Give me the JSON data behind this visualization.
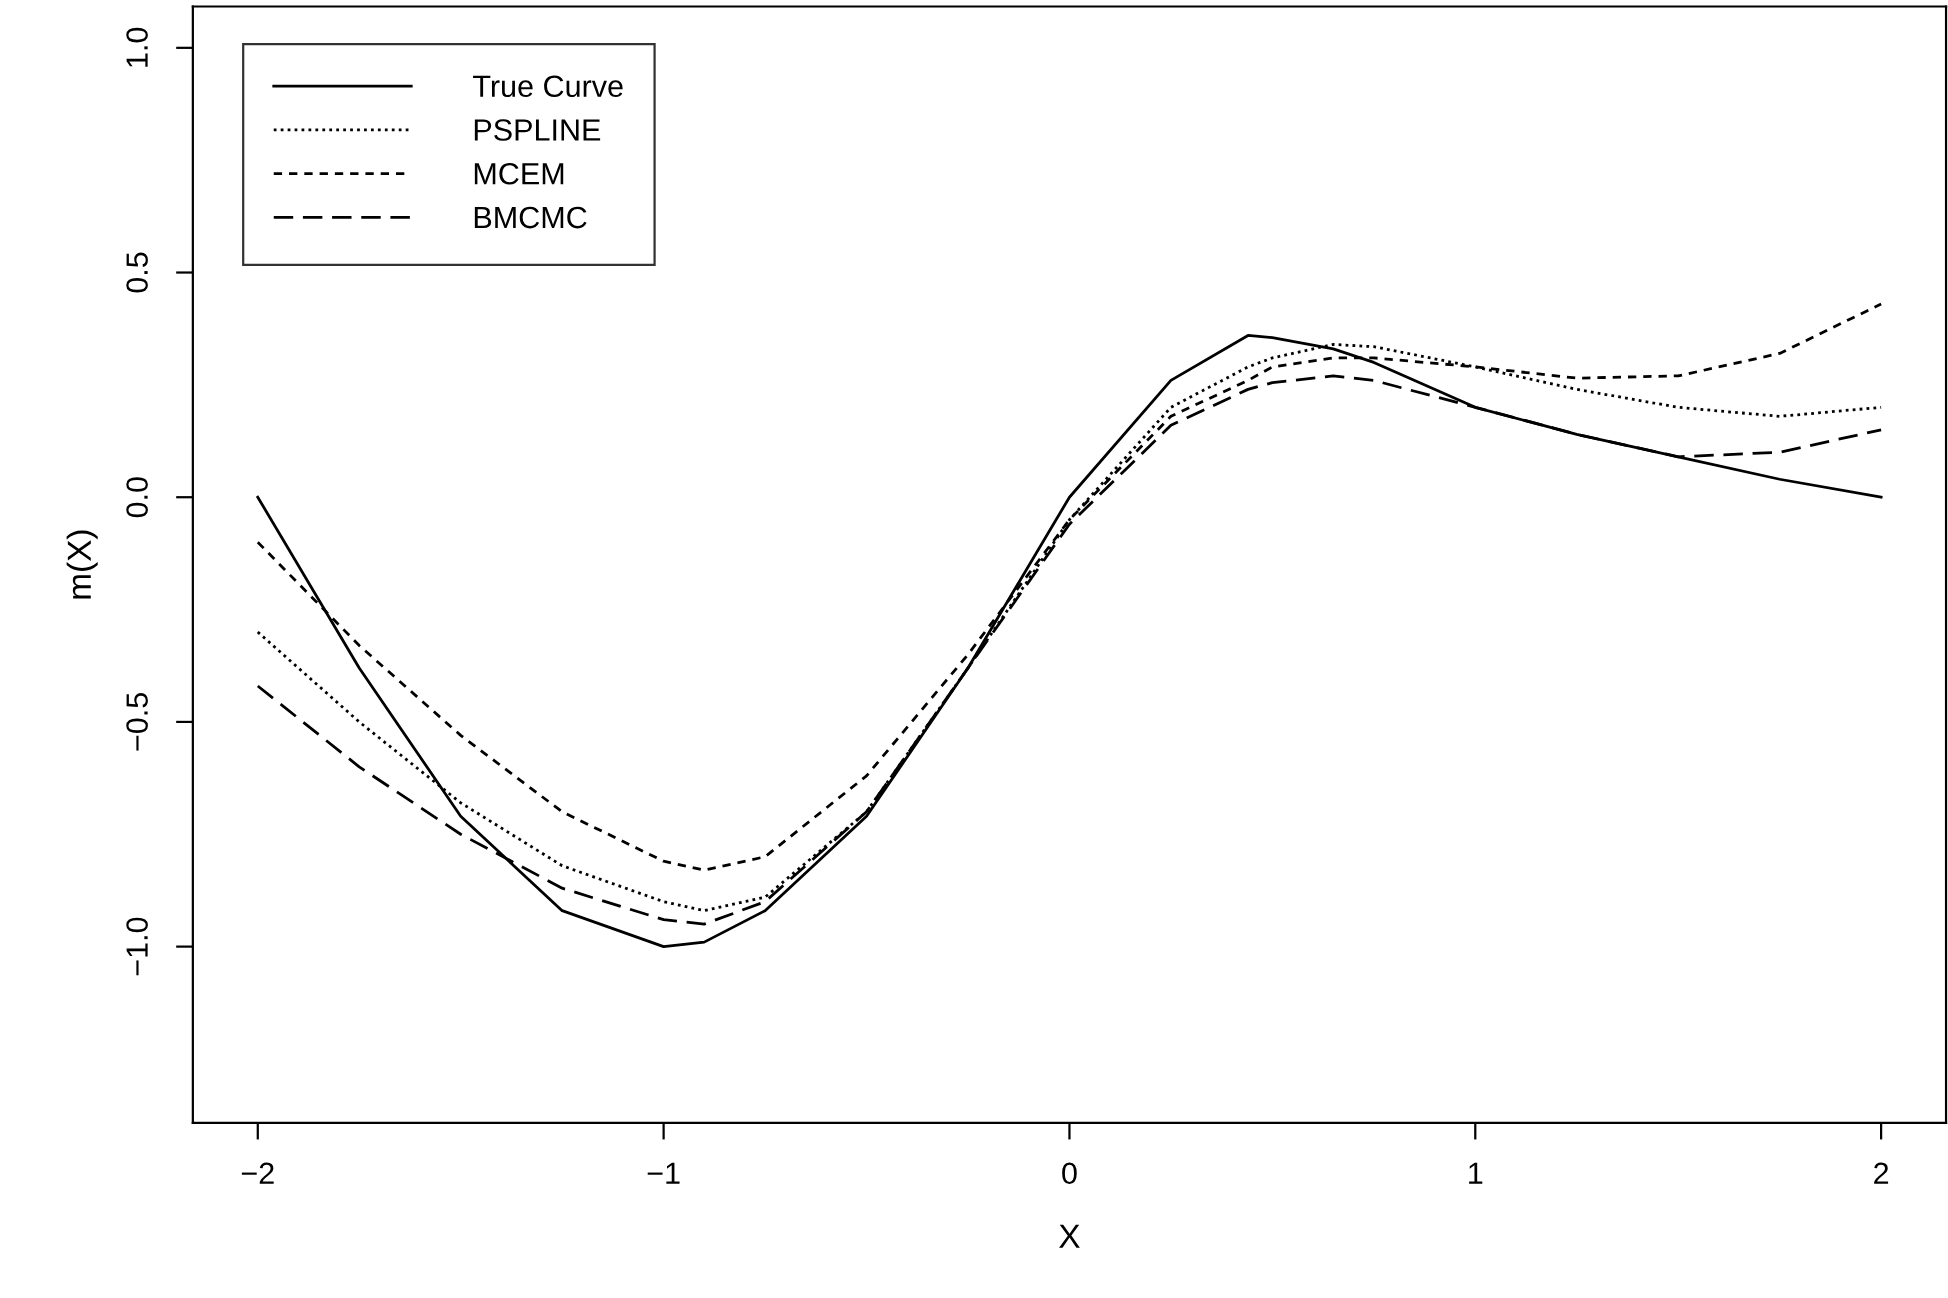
{
  "chart_data": {
    "type": "line",
    "xlabel": "X",
    "ylabel": "m(X)",
    "x": [
      -2,
      -1.75,
      -1.5,
      -1.25,
      -1,
      -0.9,
      -0.75,
      -0.5,
      -0.25,
      0,
      0.25,
      0.44,
      0.5,
      0.65,
      0.75,
      1,
      1.25,
      1.5,
      1.75,
      2
    ],
    "series": [
      {
        "name": "True Curve",
        "color": "#000000",
        "line_style": "solid",
        "values": [
          0,
          -0.38,
          -0.71,
          -0.92,
          -1.0,
          -0.99,
          -0.92,
          -0.71,
          -0.38,
          0,
          0.26,
          0.36,
          0.355,
          0.33,
          0.3,
          0.2,
          0.14,
          0.09,
          0.04,
          0
        ]
      },
      {
        "name": "PSPLINE",
        "color": "#000000",
        "line_style": "dotted",
        "values": [
          -0.3,
          -0.5,
          -0.68,
          -0.82,
          -0.9,
          -0.92,
          -0.89,
          -0.7,
          -0.38,
          -0.05,
          0.2,
          0.29,
          0.31,
          0.34,
          0.335,
          0.29,
          0.24,
          0.2,
          0.18,
          0.2
        ]
      },
      {
        "name": "MCEM",
        "color": "#000000",
        "line_style": "dashed",
        "values": [
          -0.1,
          -0.33,
          -0.53,
          -0.7,
          -0.81,
          -0.83,
          -0.8,
          -0.62,
          -0.35,
          -0.05,
          0.18,
          0.26,
          0.29,
          0.31,
          0.31,
          0.29,
          0.265,
          0.27,
          0.32,
          0.43
        ]
      },
      {
        "name": "BMCMC",
        "color": "#000000",
        "line_style": "longdash",
        "values": [
          -0.42,
          -0.6,
          -0.75,
          -0.87,
          -0.94,
          -0.95,
          -0.9,
          -0.7,
          -0.38,
          -0.06,
          0.16,
          0.24,
          0.255,
          0.27,
          0.26,
          0.2,
          0.14,
          0.09,
          0.1,
          0.15
        ]
      }
    ],
    "xlim": [
      -2.16,
      2.16
    ],
    "ylim": [
      -1.392,
      1.092
    ],
    "xticks": [
      {
        "value": -2,
        "label": "−2"
      },
      {
        "value": -1,
        "label": "−1"
      },
      0,
      1,
      2
    ],
    "yticks": [
      {
        "value": -1.0,
        "label": "−1.0"
      },
      {
        "value": -0.5,
        "label": "−0.5"
      },
      {
        "value": 0.0,
        "label": "0.0"
      },
      {
        "value": 0.5,
        "label": "0.5"
      },
      {
        "value": 1.0,
        "label": "1.0"
      }
    ],
    "legend": "top left",
    "grid": false
  }
}
